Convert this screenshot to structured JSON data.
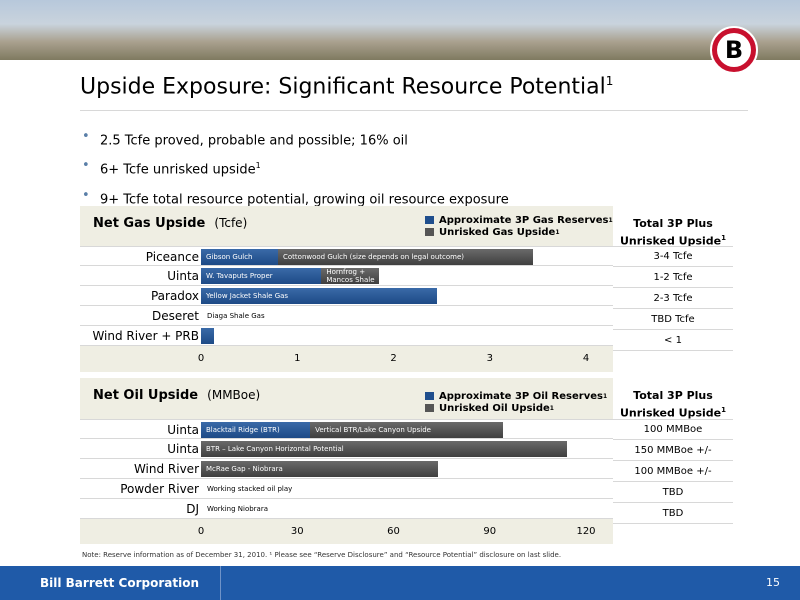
{
  "title": "Upside Exposure: Significant Resource Potential",
  "title_sup": "1",
  "bullets": [
    {
      "text": "2.5 Tcfe proved, probable and possible; 16% oil",
      "sup": ""
    },
    {
      "text": "6+ Tcfe unrisked upside",
      "sup": "1"
    },
    {
      "text": "9+ Tcfe total resource potential, growing oil resource exposure",
      "sup": ""
    }
  ],
  "gas": {
    "title": "Net Gas Upside",
    "unit": "(Tcfe)",
    "legend_reserves": "Approximate 3P Gas Reserves",
    "legend_unrisked": "Unrisked Gas Upside",
    "legend_sup": "1",
    "total_header": "Total 3P Plus",
    "total_header_2": "Unrisked Upside",
    "total_header_sup": "1",
    "rows": [
      {
        "label": "Piceance",
        "reserves_label": "Gibson Gulch",
        "upside_label": "Cottonwood Gulch (size depends on legal outcome)",
        "total": "3-4 Tcfe"
      },
      {
        "label": "Uinta",
        "reserves_label": "W. Tavaputs Proper",
        "upside_label": "Hornfrog +",
        "upside_label_2": "Mancos Shale",
        "total": "1-2 Tcfe"
      },
      {
        "label": "Paradox",
        "reserves_label": "Yellow Jacket Shale Gas",
        "upside_label": "",
        "total": "2-3 Tcfe"
      },
      {
        "label": "Deseret",
        "reserves_label": "Diaga Shale Gas",
        "upside_label": "",
        "total": "TBD Tcfe"
      },
      {
        "label": "Wind River + PRB",
        "reserves_label": "",
        "upside_label": "",
        "total": "< 1"
      }
    ],
    "ticks": [
      "0",
      "1",
      "2",
      "3",
      "4"
    ]
  },
  "oil": {
    "title": "Net Oil Upside",
    "unit": "(MMBoe)",
    "legend_reserves": "Approximate 3P Oil Reserves",
    "legend_unrisked": "Unrisked Oil Upside",
    "legend_sup": "1",
    "total_header": "Total 3P Plus",
    "total_header_2": "Unrisked Upside",
    "total_header_sup": "1",
    "rows": [
      {
        "label": "Uinta",
        "reserves_label": "Blacktail Ridge (BTR)",
        "upside_label": "Vertical BTR/Lake Canyon Upside",
        "total": "100 MMBoe"
      },
      {
        "label": "Uinta",
        "reserves_label": "",
        "upside_label": "BTR – Lake Canyon Horizontal Potential",
        "total": "150 MMBoe +/-"
      },
      {
        "label": "Wind River",
        "reserves_label": "",
        "upside_label": "McRae Gap - Niobrara",
        "total": "100 MMBoe +/-"
      },
      {
        "label": "Powder River",
        "reserves_label": "",
        "upside_label": "Working stacked oil play",
        "total": "TBD"
      },
      {
        "label": "DJ",
        "reserves_label": "",
        "upside_label": "Working Niobrara",
        "total": "TBD"
      }
    ],
    "ticks": [
      "0",
      "30",
      "60",
      "90",
      "120"
    ]
  },
  "chart_data": [
    {
      "type": "bar",
      "title": "Net Gas Upside",
      "xlabel": "(Tcfe)",
      "categories": [
        "Piceance",
        "Uinta",
        "Paradox",
        "Deseret",
        "Wind River + PRB"
      ],
      "xlim": [
        0,
        4
      ],
      "series": [
        {
          "name": "Approximate 3P Gas Reserves",
          "values": [
            0.8,
            1.25,
            2.45,
            0,
            0.13
          ]
        },
        {
          "name": "Unrisked Gas Upside",
          "values": [
            2.65,
            0.6,
            0,
            0,
            0
          ]
        }
      ]
    },
    {
      "type": "bar",
      "title": "Net Oil Upside",
      "xlabel": "(MMBoe)",
      "categories": [
        "Uinta",
        "Uinta",
        "Wind River",
        "Powder River",
        "DJ"
      ],
      "xlim": [
        0,
        120
      ],
      "series": [
        {
          "name": "Approximate 3P Oil Reserves",
          "values": [
            34,
            0,
            0,
            0,
            0
          ]
        },
        {
          "name": "Unrisked Oil Upside",
          "values": [
            60,
            114,
            74,
            0,
            0
          ]
        }
      ]
    }
  ],
  "note": "Note: Reserve information as of December 31, 2010. ¹ Please see “Reserve Disclosure” and “Resource Potential” disclosure on last slide.",
  "footer_company": "Bill Barrett Corporation",
  "page_number": "15",
  "logo_letter": "B",
  "colors": {
    "reserves": "#1f4e8d",
    "upside": "#4a4a4a",
    "footer": "#1f5aa8",
    "logo_red": "#c8102e"
  }
}
